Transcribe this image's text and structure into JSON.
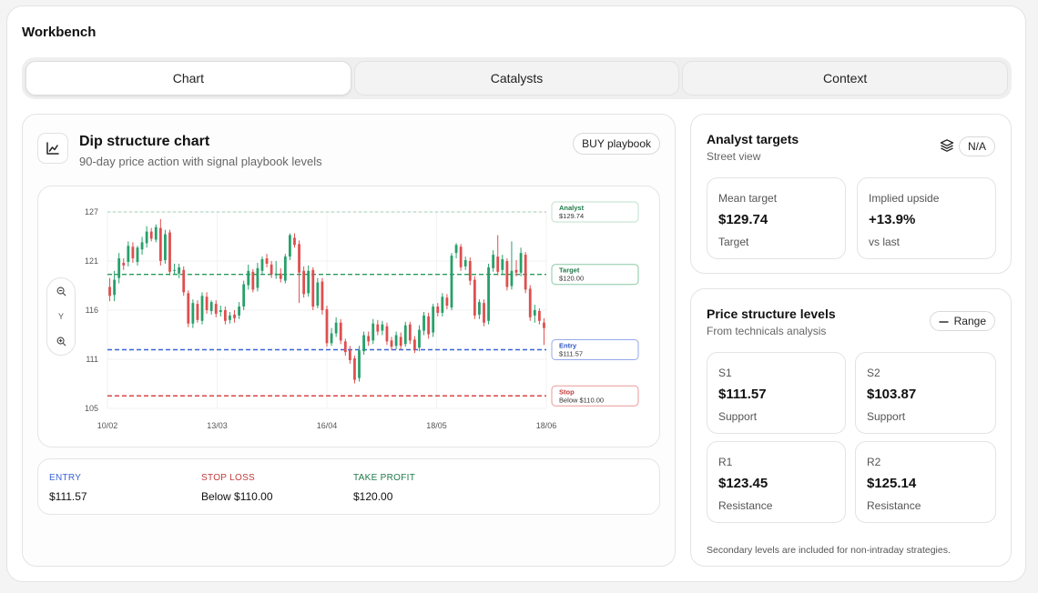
{
  "app": {
    "title": "Workbench"
  },
  "tabs": [
    {
      "label": "Chart",
      "active": true
    },
    {
      "label": "Catalysts",
      "active": false
    },
    {
      "label": "Context",
      "active": false
    }
  ],
  "dip_chart": {
    "title": "Dip structure chart",
    "subtitle": "90-day price action with signal playbook levels",
    "badge": "BUY playbook",
    "icon": "line-chart-icon",
    "zoom": {
      "axis_label": "Y"
    }
  },
  "chart_data": {
    "type": "candlestick",
    "y_ticks": [
      "127",
      "121",
      "116",
      "111",
      "105"
    ],
    "x_ticks": [
      "10/02",
      "13/03",
      "16/04",
      "18/05",
      "18/06"
    ],
    "ylim": [
      105,
      127
    ],
    "colors": {
      "up": "#27a06a",
      "down": "#de4f4f"
    },
    "levels": [
      {
        "name": "Analyst",
        "label": "$129.74",
        "value": 127.0,
        "color": "#9bcfb3"
      },
      {
        "name": "Target",
        "label": "$120.00",
        "value": 120.0,
        "color": "#2a9a5c"
      },
      {
        "name": "Entry",
        "label": "$111.57",
        "value": 111.57,
        "color": "#3a63d8"
      },
      {
        "name": "Stop",
        "label": "Below $110.00",
        "value": 106.4,
        "color": "#d94545"
      }
    ],
    "candles": [
      [
        118.6,
        117.6,
        119.6,
        117.0
      ],
      [
        117.7,
        119.4,
        120.4,
        117.0
      ],
      [
        119.6,
        121.8,
        122.4,
        119.0
      ],
      [
        121.3,
        121.0,
        121.8,
        120.5
      ],
      [
        121.4,
        123.2,
        123.7,
        120.9
      ],
      [
        123.1,
        121.8,
        123.6,
        121.3
      ],
      [
        121.4,
        123.0,
        123.2,
        121.0
      ],
      [
        122.8,
        123.6,
        124.2,
        122.2
      ],
      [
        123.5,
        124.8,
        125.4,
        123.0
      ],
      [
        124.8,
        124.0,
        125.2,
        123.7
      ],
      [
        123.9,
        125.3,
        125.6,
        123.6
      ],
      [
        125.2,
        121.5,
        126.2,
        121.0
      ],
      [
        121.6,
        124.5,
        125.0,
        121.2
      ],
      [
        124.7,
        120.3,
        125.0,
        119.9
      ],
      [
        120.5,
        120.5,
        121.2,
        120.0
      ],
      [
        120.1,
        120.8,
        121.2,
        119.6
      ],
      [
        120.5,
        118.0,
        120.9,
        117.6
      ],
      [
        117.9,
        114.5,
        118.2,
        114.1
      ],
      [
        114.5,
        116.8,
        117.2,
        114.0
      ],
      [
        116.7,
        114.9,
        117.1,
        114.6
      ],
      [
        114.8,
        117.6,
        118.0,
        114.4
      ],
      [
        117.5,
        116.0,
        118.0,
        115.6
      ],
      [
        115.9,
        116.9,
        117.1,
        115.5
      ],
      [
        116.7,
        115.6,
        117.1,
        115.2
      ],
      [
        115.8,
        116.0,
        116.5,
        115.3
      ],
      [
        116.0,
        114.8,
        116.4,
        114.4
      ],
      [
        114.9,
        115.4,
        115.8,
        114.5
      ],
      [
        115.5,
        115.1,
        116.0,
        114.6
      ],
      [
        115.4,
        116.4,
        116.9,
        115.0
      ],
      [
        116.4,
        118.9,
        119.3,
        116.0
      ],
      [
        118.8,
        120.4,
        121.1,
        118.3
      ],
      [
        120.3,
        118.3,
        120.6,
        118.0
      ],
      [
        118.5,
        120.7,
        121.3,
        118.1
      ],
      [
        120.4,
        121.7,
        122.0,
        120.0
      ],
      [
        121.8,
        121.2,
        122.3,
        120.8
      ],
      [
        121.1,
        120.0,
        121.5,
        119.6
      ],
      [
        119.9,
        120.1,
        121.5,
        119.5
      ],
      [
        120.1,
        119.5,
        120.7,
        119.1
      ],
      [
        119.3,
        122.0,
        122.3,
        119.0
      ],
      [
        122.0,
        124.4,
        124.6,
        121.6
      ],
      [
        124.1,
        123.3,
        124.6,
        123.0
      ],
      [
        123.4,
        120.2,
        123.8,
        116.8
      ],
      [
        120.4,
        117.8,
        120.9,
        117.4
      ],
      [
        117.9,
        120.4,
        121.0,
        117.5
      ],
      [
        120.5,
        116.4,
        120.8,
        116.0
      ],
      [
        116.5,
        119.1,
        119.6,
        116.2
      ],
      [
        119.2,
        116.0,
        119.6,
        115.5
      ],
      [
        116.1,
        112.3,
        116.5,
        111.9
      ],
      [
        112.3,
        113.4,
        114.0,
        112.0
      ],
      [
        113.4,
        114.6,
        115.2,
        113.0
      ],
      [
        114.6,
        112.6,
        115.0,
        112.2
      ],
      [
        112.5,
        111.3,
        112.8,
        110.9
      ],
      [
        111.5,
        110.4,
        112.0,
        110.0
      ],
      [
        110.6,
        108.2,
        110.9,
        107.8
      ],
      [
        108.4,
        111.5,
        112.0,
        108.0
      ],
      [
        111.4,
        113.2,
        113.6,
        111.0
      ],
      [
        113.1,
        112.5,
        113.6,
        112.0
      ],
      [
        112.6,
        114.5,
        115.0,
        112.2
      ],
      [
        114.4,
        113.6,
        114.9,
        113.2
      ],
      [
        113.7,
        114.4,
        114.8,
        113.2
      ],
      [
        114.2,
        112.5,
        114.6,
        112.1
      ],
      [
        112.6,
        111.9,
        113.0,
        111.5
      ],
      [
        112.0,
        113.2,
        113.6,
        111.6
      ],
      [
        113.0,
        112.0,
        113.5,
        111.6
      ],
      [
        112.2,
        114.3,
        114.7,
        111.9
      ],
      [
        114.4,
        112.6,
        114.7,
        112.2
      ],
      [
        112.7,
        111.6,
        113.1,
        111.2
      ],
      [
        111.8,
        113.8,
        114.3,
        111.4
      ],
      [
        113.7,
        115.4,
        115.8,
        113.2
      ],
      [
        115.3,
        113.3,
        115.7,
        112.8
      ],
      [
        113.5,
        116.4,
        116.7,
        113.0
      ],
      [
        116.4,
        115.7,
        116.8,
        115.3
      ],
      [
        115.7,
        117.5,
        117.9,
        115.3
      ],
      [
        117.4,
        116.5,
        117.8,
        116.1
      ],
      [
        116.3,
        122.1,
        122.4,
        116.0
      ],
      [
        122.4,
        123.3,
        123.5,
        121.8
      ],
      [
        123.1,
        120.8,
        123.4,
        120.4
      ],
      [
        120.9,
        121.6,
        122.0,
        120.5
      ],
      [
        121.5,
        119.3,
        121.9,
        118.8
      ],
      [
        119.4,
        115.4,
        119.8,
        115.0
      ],
      [
        115.5,
        116.9,
        117.2,
        115.0
      ],
      [
        116.8,
        114.6,
        117.2,
        114.2
      ],
      [
        114.8,
        120.8,
        121.2,
        114.4
      ],
      [
        120.7,
        122.2,
        122.7,
        120.3
      ],
      [
        122.0,
        120.3,
        124.4,
        119.9
      ],
      [
        120.5,
        121.7,
        122.2,
        120.0
      ],
      [
        121.5,
        118.6,
        121.8,
        118.2
      ],
      [
        118.7,
        120.4,
        123.7,
        118.3
      ],
      [
        120.5,
        120.2,
        121.6,
        119.8
      ],
      [
        120.2,
        122.4,
        123.0,
        119.8
      ],
      [
        122.2,
        118.3,
        122.5,
        117.9
      ],
      [
        118.4,
        115.2,
        118.8,
        114.8
      ],
      [
        115.4,
        116.0,
        116.6,
        114.6
      ],
      [
        115.9,
        114.8,
        116.2,
        114.4
      ],
      [
        114.6,
        114.0,
        115.1,
        112.1
      ]
    ]
  },
  "trade_levels": [
    {
      "key": "ENTRY",
      "value": "$111.57",
      "color": "#3a63d8"
    },
    {
      "key": "STOP LOSS",
      "value": "Below $110.00",
      "color": "#c43a3a"
    },
    {
      "key": "TAKE PROFIT",
      "value": "$120.00",
      "color": "#1f7a4a"
    }
  ],
  "analyst": {
    "title": "Analyst targets",
    "subtitle": "Street view",
    "badge": "N/A",
    "stats": [
      {
        "label": "Mean target",
        "value": "$129.74",
        "sub": "Target"
      },
      {
        "label": "Implied upside",
        "value": "+13.9%",
        "sub": "vs last"
      }
    ]
  },
  "structure": {
    "title": "Price structure levels",
    "subtitle": "From technicals analysis",
    "badge": "Range",
    "stats": [
      {
        "label": "S1",
        "value": "$111.57",
        "sub": "Support"
      },
      {
        "label": "S2",
        "value": "$103.87",
        "sub": "Support"
      },
      {
        "label": "R1",
        "value": "$123.45",
        "sub": "Resistance"
      },
      {
        "label": "R2",
        "value": "$125.14",
        "sub": "Resistance"
      }
    ],
    "footnote": "Secondary levels are included for non-intraday strategies."
  }
}
